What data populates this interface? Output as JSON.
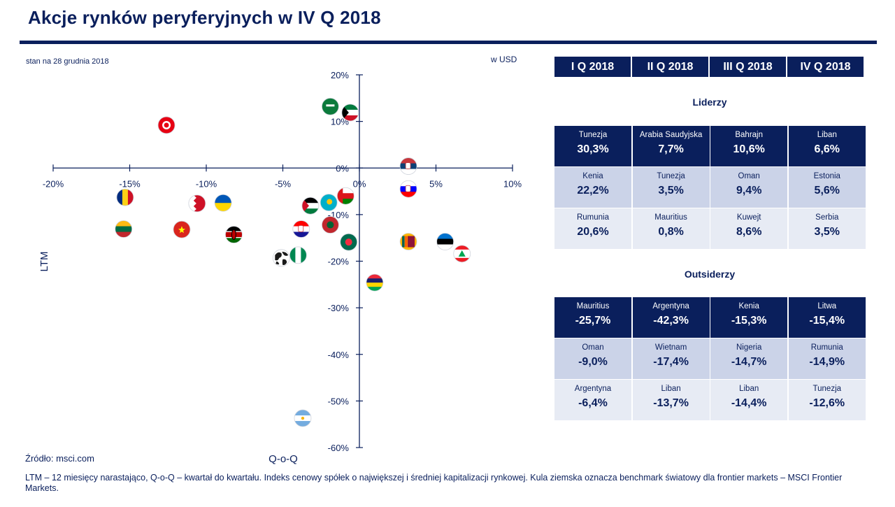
{
  "title": "Akcje rynków peryferyjnych w IV Q 2018",
  "date_note": "stan na 28 grudnia 2018",
  "currency_note": "w USD",
  "source": "Źródło: msci.com",
  "footnote": "LTM – 12 miesięcy narastająco, Q-o-Q – kwartał do kwartału. Indeks cenowy spółek o największej i średniej kapitalizacji rynkowej. Kula ziemska oznacza benchmark światowy dla frontier markets – MSCI Frontier Markets.",
  "quarters": [
    "I Q 2018",
    "II Q 2018",
    "III Q 2018",
    "IV Q 2018"
  ],
  "leaders_title": "Liderzy",
  "outsiders_title": "Outsiderzy",
  "leaders": [
    [
      {
        "name": "Tunezja",
        "value": "30,3%"
      },
      {
        "name": "Arabia Saudyjska",
        "value": "7,7%"
      },
      {
        "name": "Bahrajn",
        "value": "10,6%"
      },
      {
        "name": "Liban",
        "value": "6,6%"
      }
    ],
    [
      {
        "name": "Kenia",
        "value": "22,2%"
      },
      {
        "name": "Tunezja",
        "value": "3,5%"
      },
      {
        "name": "Oman",
        "value": "9,4%"
      },
      {
        "name": "Estonia",
        "value": "5,6%"
      }
    ],
    [
      {
        "name": "Rumunia",
        "value": "20,6%"
      },
      {
        "name": "Mauritius",
        "value": "0,8%"
      },
      {
        "name": "Kuwejt",
        "value": "8,6%"
      },
      {
        "name": "Serbia",
        "value": "3,5%"
      }
    ]
  ],
  "outsiders": [
    [
      {
        "name": "Mauritius",
        "value": "-25,7%"
      },
      {
        "name": "Argentyna",
        "value": "-42,3%"
      },
      {
        "name": "Kenia",
        "value": "-15,3%"
      },
      {
        "name": "Litwa",
        "value": "-15,4%"
      }
    ],
    [
      {
        "name": "Oman",
        "value": "-9,0%"
      },
      {
        "name": "Wietnam",
        "value": "-17,4%"
      },
      {
        "name": "Nigeria",
        "value": "-14,7%"
      },
      {
        "name": "Rumunia",
        "value": "-14,9%"
      }
    ],
    [
      {
        "name": "Argentyna",
        "value": "-6,4%"
      },
      {
        "name": "Liban",
        "value": "-13,7%"
      },
      {
        "name": "Liban",
        "value": "-14,4%"
      },
      {
        "name": "Tunezja",
        "value": "-12,6%"
      }
    ]
  ],
  "chart_data": {
    "type": "scatter",
    "xlabel": "Q-o-Q",
    "ylabel": "LTM",
    "xlim": [
      -20,
      10
    ],
    "ylim": [
      -60,
      20
    ],
    "x_ticks": [
      "-20%",
      "-15%",
      "-10%",
      "-5%",
      "0%",
      "5%",
      "10%"
    ],
    "y_ticks": [
      "20%",
      "10%",
      "0%",
      "-10%",
      "-20%",
      "-30%",
      "-40%",
      "-50%",
      "-60%"
    ],
    "points": [
      {
        "icon": "flag-tunisia-icon",
        "x": -12.6,
        "y": 9.2,
        "colors": [
          "#e70013",
          "#ffffff"
        ]
      },
      {
        "icon": "flag-saudi-arabia-icon",
        "x": -1.9,
        "y": 13.2,
        "colors": [
          "#0b7a3b",
          "#ffffff"
        ]
      },
      {
        "icon": "flag-kuwait-icon",
        "x": -0.6,
        "y": 11.9,
        "colors": [
          "#007a3d",
          "#ffffff",
          "#ce1126",
          "#000000"
        ]
      },
      {
        "icon": "flag-serbia-icon",
        "x": 3.2,
        "y": 0.4,
        "colors": [
          "#c6363c",
          "#0c4076",
          "#ffffff"
        ]
      },
      {
        "icon": "flag-slovenia-icon",
        "x": 3.2,
        "y": -4.5,
        "colors": [
          "#ffffff",
          "#0000ff",
          "#ff0000"
        ]
      },
      {
        "icon": "flag-oman-icon",
        "x": -0.9,
        "y": -6.0,
        "colors": [
          "#db161b",
          "#ffffff",
          "#008000"
        ]
      },
      {
        "icon": "flag-kazakhstan-icon",
        "x": -2.0,
        "y": -7.4,
        "colors": [
          "#00afca",
          "#fec50c"
        ]
      },
      {
        "icon": "flag-jordan-icon",
        "x": -3.2,
        "y": -8.1,
        "colors": [
          "#000000",
          "#ffffff",
          "#007a3d",
          "#ce1126"
        ]
      },
      {
        "icon": "flag-romania-icon",
        "x": -15.3,
        "y": -6.3,
        "colors": [
          "#002b7f",
          "#fcd116",
          "#ce1126"
        ]
      },
      {
        "icon": "flag-bahrain-icon",
        "x": -10.6,
        "y": -7.6,
        "colors": [
          "#ffffff",
          "#ce1126"
        ]
      },
      {
        "icon": "flag-ukraine-icon",
        "x": -8.9,
        "y": -7.5,
        "colors": [
          "#0057b7",
          "#ffd700"
        ]
      },
      {
        "icon": "flag-morocco-icon",
        "x": -1.9,
        "y": -12.2,
        "colors": [
          "#c1272d",
          "#006233"
        ]
      },
      {
        "icon": "flag-croatia-icon",
        "x": -3.8,
        "y": -13.1,
        "colors": [
          "#ff0000",
          "#ffffff",
          "#171796"
        ]
      },
      {
        "icon": "flag-lithuania-icon",
        "x": -15.4,
        "y": -13.1,
        "colors": [
          "#fdb913",
          "#006a44",
          "#c1272d"
        ]
      },
      {
        "icon": "flag-vietnam-icon",
        "x": -11.6,
        "y": -13.2,
        "colors": [
          "#da251d",
          "#ffff00"
        ]
      },
      {
        "icon": "flag-kenya-icon",
        "x": -8.2,
        "y": -14.3,
        "colors": [
          "#000000",
          "#ffffff",
          "#bb0000",
          "#006600"
        ]
      },
      {
        "icon": "flag-bangladesh-icon",
        "x": -0.7,
        "y": -15.9,
        "colors": [
          "#006a4e",
          "#f42a41"
        ]
      },
      {
        "icon": "flag-sri-lanka-icon",
        "x": 3.2,
        "y": -15.8,
        "colors": [
          "#ffb700",
          "#8d153a",
          "#005f56",
          "#ff5b00"
        ]
      },
      {
        "icon": "flag-estonia-icon",
        "x": 5.6,
        "y": -15.8,
        "colors": [
          "#0072ce",
          "#000000",
          "#ffffff"
        ]
      },
      {
        "icon": "flag-lebanon-icon",
        "x": 6.7,
        "y": -18.4,
        "colors": [
          "#ed1c24",
          "#ffffff",
          "#00a651"
        ]
      },
      {
        "icon": "flag-nigeria-icon",
        "x": -4.0,
        "y": -18.7,
        "colors": [
          "#008751",
          "#ffffff"
        ]
      },
      {
        "icon": "globe-icon",
        "x": -5.1,
        "y": -19.3,
        "colors": [
          "#ffffff",
          "#1a1a1a"
        ]
      },
      {
        "icon": "flag-mauritius-icon",
        "x": 1.0,
        "y": -24.6,
        "colors": [
          "#ea2839",
          "#1a206d",
          "#ffd500",
          "#00a551"
        ]
      },
      {
        "icon": "flag-argentina-icon",
        "x": -3.7,
        "y": -53.7,
        "colors": [
          "#74acdf",
          "#ffffff",
          "#f6b40e"
        ]
      }
    ]
  }
}
